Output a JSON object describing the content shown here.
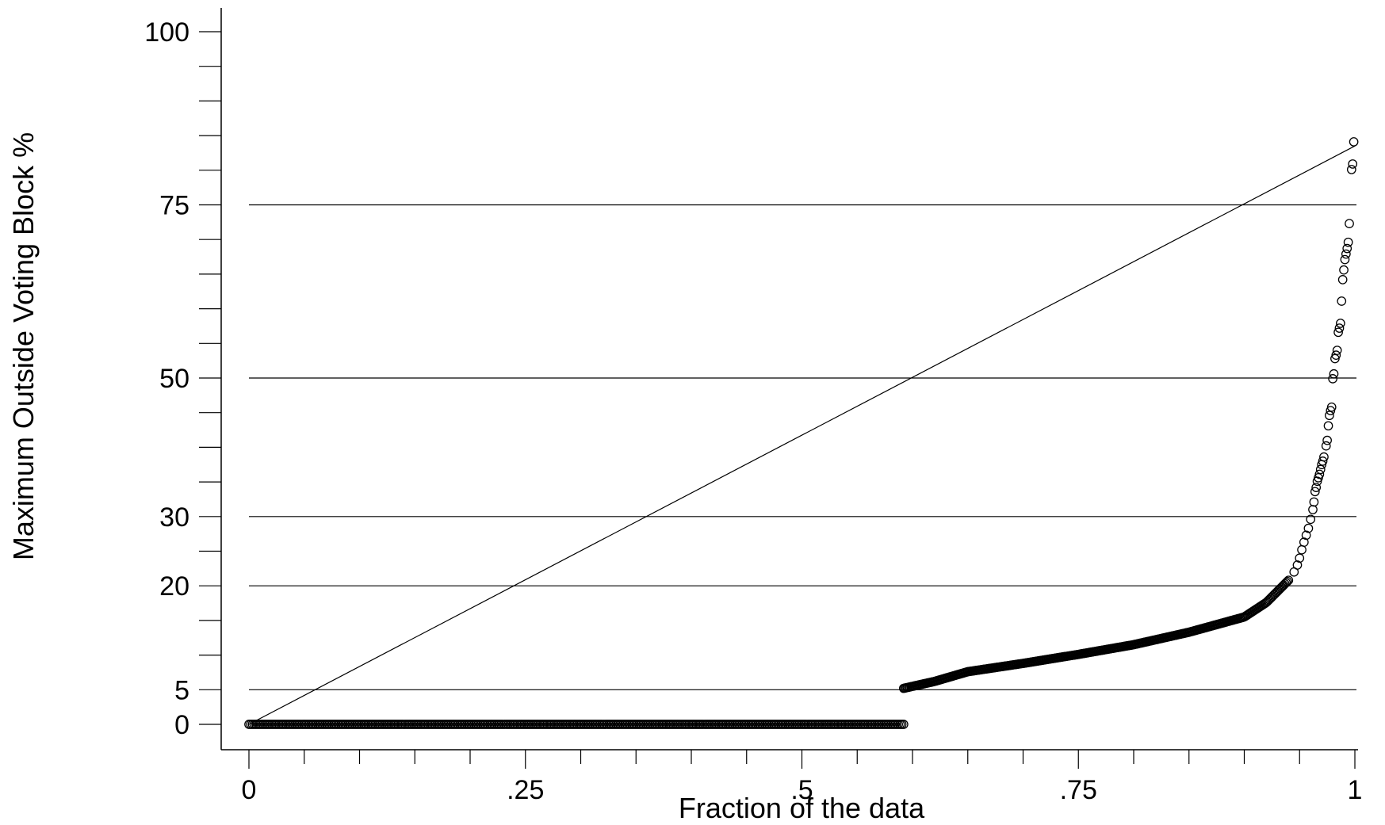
{
  "chart_data": {
    "type": "scatter",
    "title": "",
    "xlabel": "Fraction of the data",
    "ylabel": "Maximum Outside Voting Block %",
    "xlim": [
      0,
      1
    ],
    "ylim": [
      0,
      100
    ],
    "x_tick_values": [
      0,
      0.25,
      0.5,
      0.75,
      1
    ],
    "x_tick_labels": [
      "0",
      ".25",
      ".5",
      ".75",
      "1"
    ],
    "y_tick_values": [
      0,
      5,
      20,
      30,
      50,
      75,
      100
    ],
    "y_tick_labels": [
      "0",
      "5",
      "20",
      "30",
      "50",
      "75",
      "100"
    ],
    "y_minor_ticks": [
      0,
      5,
      10,
      15,
      20,
      25,
      30,
      35,
      40,
      45,
      50,
      55,
      60,
      65,
      70,
      75,
      80,
      85,
      90,
      95,
      100
    ],
    "x_minor_ticks": [
      0,
      0.05,
      0.1,
      0.15,
      0.2,
      0.25,
      0.3,
      0.35,
      0.4,
      0.45,
      0.5,
      0.55,
      0.6,
      0.65,
      0.7,
      0.75,
      0.8,
      0.85,
      0.9,
      0.95,
      1
    ],
    "grid": {
      "horizontal_at": [
        5,
        20,
        30,
        50,
        75
      ]
    },
    "reference_line": {
      "from": [
        0,
        0
      ],
      "to": [
        1,
        83.5
      ]
    },
    "series": [
      {
        "marker": "hollow-circle",
        "segments": [
          {
            "x_from": 0,
            "x_to": 0.592,
            "y": 0,
            "count": 370
          },
          {
            "x_from": 0.592,
            "x_to": 0.94,
            "y_curve": [
              [
                0.592,
                5.2
              ],
              [
                0.62,
                6.2
              ],
              [
                0.65,
                7.6
              ],
              [
                0.7,
                8.8
              ],
              [
                0.75,
                10.1
              ],
              [
                0.8,
                11.5
              ],
              [
                0.85,
                13.3
              ],
              [
                0.9,
                15.5
              ],
              [
                0.92,
                17.6
              ],
              [
                0.94,
                20.8
              ]
            ],
            "count": 320
          }
        ],
        "tail_points": [
          [
            0.945,
            22.0
          ],
          [
            0.948,
            23.0
          ],
          [
            0.95,
            24.0
          ],
          [
            0.952,
            25.2
          ],
          [
            0.954,
            26.3
          ],
          [
            0.956,
            27.3
          ],
          [
            0.958,
            28.3
          ],
          [
            0.96,
            29.6
          ],
          [
            0.962,
            31.0
          ],
          [
            0.963,
            32.1
          ],
          [
            0.964,
            33.6
          ],
          [
            0.965,
            34.2
          ],
          [
            0.966,
            35.1
          ],
          [
            0.967,
            35.6
          ],
          [
            0.968,
            36.1
          ],
          [
            0.969,
            36.8
          ],
          [
            0.97,
            37.5
          ],
          [
            0.971,
            38.0
          ],
          [
            0.972,
            38.6
          ],
          [
            0.974,
            40.2
          ],
          [
            0.975,
            41.0
          ],
          [
            0.976,
            43.1
          ],
          [
            0.977,
            44.6
          ],
          [
            0.978,
            45.3
          ],
          [
            0.979,
            45.8
          ],
          [
            0.98,
            49.9
          ],
          [
            0.981,
            50.6
          ],
          [
            0.982,
            52.8
          ],
          [
            0.983,
            53.3
          ],
          [
            0.984,
            54.0
          ],
          [
            0.985,
            56.6
          ],
          [
            0.986,
            57.2
          ],
          [
            0.987,
            57.9
          ],
          [
            0.988,
            61.1
          ],
          [
            0.989,
            64.2
          ],
          [
            0.99,
            65.6
          ],
          [
            0.991,
            67.1
          ],
          [
            0.992,
            67.9
          ],
          [
            0.993,
            68.7
          ],
          [
            0.994,
            69.6
          ],
          [
            0.995,
            72.3
          ],
          [
            0.997,
            80.1
          ],
          [
            0.998,
            80.9
          ],
          [
            0.999,
            84.1
          ]
        ]
      }
    ]
  }
}
